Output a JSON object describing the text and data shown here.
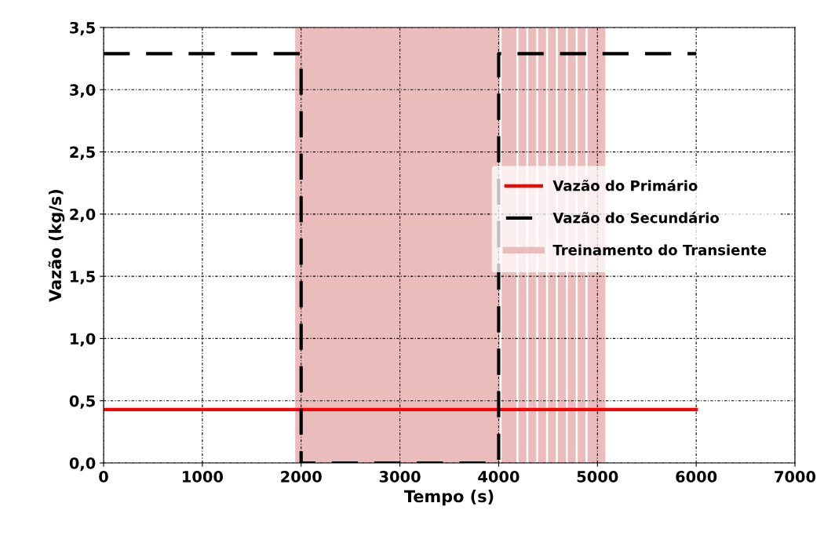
{
  "chart_data": {
    "type": "line",
    "xlabel": "Tempo (s)",
    "ylabel": "Vazão (kg/s)",
    "series": [
      {
        "name": "Vazão do Primário",
        "color": "#ff0000",
        "x": [
          0,
          6000
        ],
        "values": [
          0.43,
          0.43
        ],
        "line_style": "solid"
      },
      {
        "name": "Vazão do Secundário",
        "color": "#000000",
        "x": [
          0,
          2000,
          2000,
          4000,
          4000,
          6000
        ],
        "values": [
          3.29,
          3.29,
          0,
          0,
          3.29,
          3.29
        ],
        "line_style": "dashed"
      }
    ],
    "bands": [
      {
        "axis": "x",
        "from": 1940,
        "to": 4010,
        "label": "Treinamento do Transiente",
        "color": "#ebbcbc"
      },
      {
        "axis": "x",
        "from": 4030,
        "to": 4180,
        "color": "#ebbcbc"
      },
      {
        "axis": "x",
        "from": 4200,
        "to": 4280,
        "color": "#ebbcbc"
      },
      {
        "axis": "x",
        "from": 4300,
        "to": 4380,
        "color": "#ebbcbc"
      },
      {
        "axis": "x",
        "from": 4400,
        "to": 4480,
        "color": "#ebbcbc"
      },
      {
        "axis": "x",
        "from": 4500,
        "to": 4580,
        "color": "#ebbcbc"
      },
      {
        "axis": "x",
        "from": 4600,
        "to": 4680,
        "color": "#ebbcbc"
      },
      {
        "axis": "x",
        "from": 4700,
        "to": 4780,
        "color": "#ebbcbc"
      },
      {
        "axis": "x",
        "from": 4800,
        "to": 4880,
        "color": "#ebbcbc"
      },
      {
        "axis": "x",
        "from": 4900,
        "to": 5080,
        "color": "#ebbcbc"
      }
    ],
    "xlim": [
      0,
      7000
    ],
    "xticks": [
      0,
      1000,
      2000,
      3000,
      4000,
      5000,
      6000,
      7000
    ],
    "ylim": [
      0,
      3.5
    ],
    "yticks": [
      {
        "value": 0,
        "label": "0,0"
      },
      {
        "value": 0.5,
        "label": "0,5"
      },
      {
        "value": 1,
        "label": "1,0"
      },
      {
        "value": 1.5,
        "label": "1,5"
      },
      {
        "value": 2,
        "label": "2,0"
      },
      {
        "value": 2.5,
        "label": "2,5"
      },
      {
        "value": 3,
        "label": "3,0"
      },
      {
        "value": 3.5,
        "label": "3,5"
      }
    ],
    "grid": true,
    "legend": "right"
  }
}
